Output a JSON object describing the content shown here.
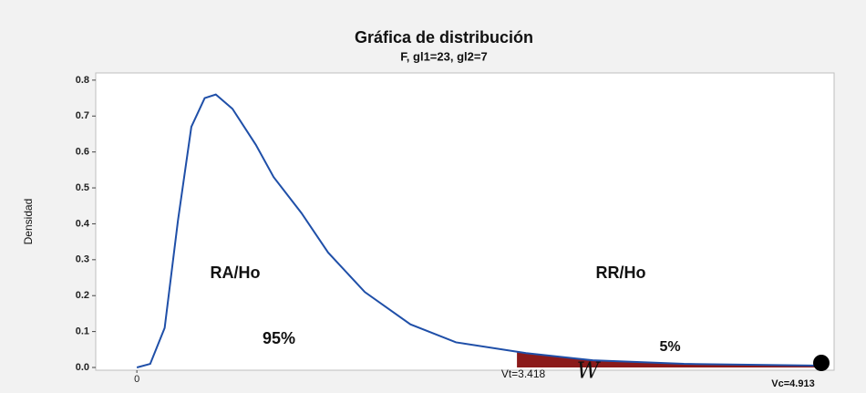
{
  "chart_data": {
    "type": "line",
    "title": "Gráfica de distribución",
    "subtitle": "F, gl1=23, gl2=7",
    "ylabel": "Densidad",
    "x": [
      0,
      0.12,
      0.25,
      0.37,
      0.49,
      0.61,
      0.71,
      0.86,
      1.07,
      1.23,
      1.48,
      1.72,
      2.05,
      2.46,
      2.87,
      3.5,
      4.1,
      4.92,
      6.15
    ],
    "series": [
      {
        "color": "#1f4fa8",
        "values": [
          0,
          0.01,
          0.11,
          0.41,
          0.67,
          0.75,
          0.76,
          0.72,
          0.62,
          0.53,
          0.43,
          0.32,
          0.21,
          0.12,
          0.07,
          0.04,
          0.02,
          0.01,
          0.005
        ]
      }
    ],
    "shade_start": 3.418,
    "shade_color": "#8b1a1a",
    "xlim": [
      -0.37,
      6.27
    ],
    "ylim": [
      0,
      0.82
    ],
    "xticks": [
      0
    ],
    "yticks": [
      {
        "value": 0,
        "label": "0.0"
      },
      0.1,
      0.2,
      0.3,
      0.4,
      0.5,
      0.6,
      0.7,
      0.8
    ],
    "annotations": [
      "RA/Ho",
      "RR/Ho",
      "95%",
      "5%",
      "Vt=3.418",
      "Vc=4.913",
      "W"
    ]
  }
}
